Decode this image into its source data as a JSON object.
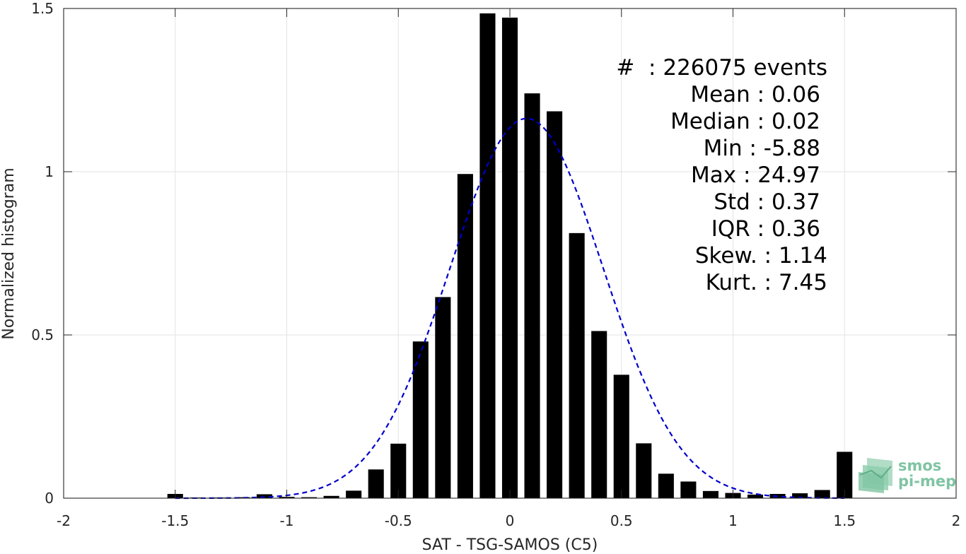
{
  "chart_data": {
    "type": "bar",
    "xlabel": "SAT - TSG-SAMOS (C5)",
    "ylabel": "Normalized histogram",
    "xlim": [
      -2,
      2
    ],
    "ylim": [
      0,
      1.5
    ],
    "xticks": [
      -2,
      -1.5,
      -1,
      -0.5,
      0,
      0.5,
      1,
      1.5,
      2
    ],
    "xtick_labels": [
      "-2",
      "-1.5",
      "-1",
      "-0.5",
      "0",
      "0.5",
      "1",
      "1.5",
      "2"
    ],
    "yticks": [
      0,
      0.5,
      1,
      1.5
    ],
    "ytick_labels": [
      "0",
      "0.5",
      "1",
      "1.5"
    ],
    "grid": true,
    "bar_width": 0.07,
    "bar_color": "#000000",
    "bars": {
      "x": [
        -1.5,
        -1.4,
        -1.3,
        -1.2,
        -1.1,
        -1.0,
        -0.9,
        -0.8,
        -0.7,
        -0.6,
        -0.5,
        -0.4,
        -0.3,
        -0.2,
        -0.1,
        0.0,
        0.1,
        0.2,
        0.3,
        0.4,
        0.5,
        0.6,
        0.7,
        0.8,
        0.9,
        1.0,
        1.1,
        1.2,
        1.3,
        1.4,
        1.5
      ],
      "values": [
        0.013,
        0.002,
        0.002,
        0.003,
        0.012,
        0.004,
        0.003,
        0.007,
        0.023,
        0.088,
        0.167,
        0.48,
        0.616,
        0.993,
        1.485,
        1.472,
        1.24,
        1.185,
        0.812,
        0.512,
        0.378,
        0.168,
        0.075,
        0.051,
        0.022,
        0.016,
        0.011,
        0.013,
        0.015,
        0.025,
        0.142
      ]
    },
    "fit_curve": {
      "style": "dashed",
      "color": "#0000cc",
      "distribution": "normal",
      "mean": 0.075,
      "std": 0.343,
      "peak": 1.163,
      "x_range": [
        -1.5,
        1.5
      ]
    },
    "stats_lines": [
      "#  : 226075 events",
      "Mean : 0.06",
      "Median : 0.02",
      "Min : -5.88",
      "Max : 24.97",
      "Std : 0.37",
      "IQR : 0.36",
      "Skew. : 1.14",
      "Kurt. : 7.45"
    ]
  },
  "logo": {
    "line1": "smos",
    "line2": "pi-mep",
    "color": "#7fc4a3"
  }
}
